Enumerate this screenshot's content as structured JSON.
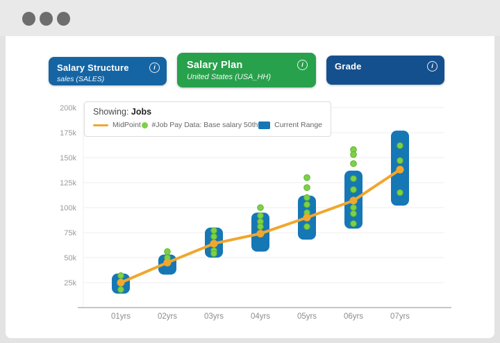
{
  "window": {
    "control_dots": 3
  },
  "toolbar": {
    "buttons": [
      {
        "title": "Salary Structure",
        "subtitle": "sales (SALES)",
        "color": "#1565a4",
        "info_icon": "i"
      },
      {
        "title": "Salary Plan",
        "subtitle": "United States (USA_HH)",
        "color": "#28a14c",
        "info_icon": "i"
      },
      {
        "title": "Grade",
        "subtitle": "",
        "color": "#15508e",
        "info_icon": "i"
      }
    ]
  },
  "legend": {
    "prefix": "Showing:",
    "value": "Jobs"
  },
  "chart_data": {
    "type": "composite",
    "subtype": "range-bar + scatter + line",
    "title": "Showing: Jobs",
    "categories": [
      "01yrs",
      "02yrs",
      "03yrs",
      "04yrs",
      "05yrs",
      "06yrs",
      "07yrs"
    ],
    "values_unit": "USD thousands",
    "ylim": [
      0,
      200
    ],
    "grid": "horizontal",
    "legend_position": "top-left overlay",
    "y_ticks": [
      {
        "value": 25,
        "label": "25k"
      },
      {
        "value": 50,
        "label": "50k"
      },
      {
        "value": 75,
        "label": "75k"
      },
      {
        "value": 100,
        "label": "100k"
      },
      {
        "value": 125,
        "label": "125k"
      },
      {
        "value": 150,
        "label": "150k"
      },
      {
        "value": 175,
        "label": "175k"
      },
      {
        "value": 200,
        "label": "200k"
      }
    ],
    "series": [
      {
        "name": "MidPoint",
        "type": "line",
        "color": "#f0a72e",
        "values": [
          25,
          45,
          64,
          74,
          90,
          107,
          138
        ]
      },
      {
        "name": "#Job Pay Data: Base salary 50th",
        "type": "scatter",
        "color": "#7ed048",
        "values_by_category": [
          [
            32,
            25,
            18
          ],
          [
            56,
            50,
            45
          ],
          [
            77,
            71,
            64,
            57,
            54
          ],
          [
            100,
            92,
            86,
            81
          ],
          [
            130,
            120,
            110,
            103,
            95,
            81
          ],
          [
            158,
            153,
            144,
            129,
            118,
            100,
            94,
            84
          ],
          [
            162,
            147,
            115
          ]
        ]
      },
      {
        "name": "Current Range",
        "type": "bar-range",
        "color": "#1677b5",
        "low": [
          14,
          33,
          50,
          56,
          68,
          79,
          102
        ],
        "high": [
          34,
          53,
          80,
          95,
          112,
          137,
          177
        ]
      }
    ]
  }
}
